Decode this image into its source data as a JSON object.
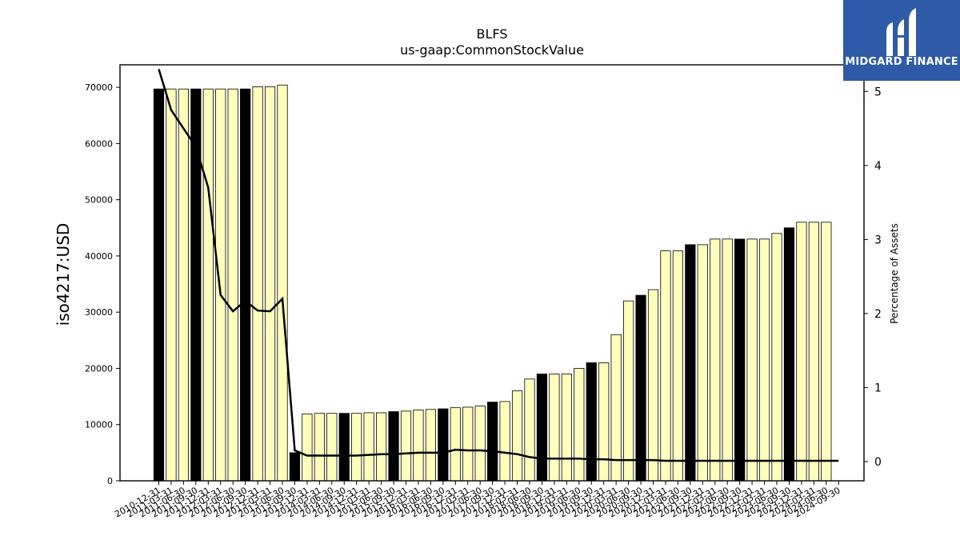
{
  "chart_data": {
    "type": "bar",
    "title": "BLFS",
    "subtitle": "us-gaap:CommonStockValue",
    "ylabel": "iso4217:USD",
    "y2label": "Percentage of Assets",
    "ylim": [
      0,
      74000
    ],
    "y_ticks": [
      0,
      10000,
      20000,
      30000,
      40000,
      50000,
      60000,
      70000
    ],
    "y2lim": [
      -0.26,
      5.36
    ],
    "y2_ticks": [
      0,
      1,
      2,
      3,
      4,
      5
    ],
    "categories": [
      "2010-12-31",
      "2011-03-31",
      "2011-06-30",
      "2011-09-30",
      "2011-12-31",
      "2012-03-31",
      "2012-06-30",
      "2012-09-30",
      "2012-12-31",
      "2013-03-31",
      "2013-06-30",
      "2013-09-30",
      "2013-12-31",
      "2014-03-31",
      "2014-06-30",
      "2014-09-30",
      "2014-12-31",
      "2015-03-31",
      "2015-06-30",
      "2015-09-30",
      "2015-12-31",
      "2016-03-31",
      "2016-06-30",
      "2016-09-30",
      "2016-12-31",
      "2017-03-31",
      "2017-06-30",
      "2017-09-30",
      "2017-12-31",
      "2018-03-31",
      "2018-06-30",
      "2018-09-30",
      "2018-12-31",
      "2019-03-31",
      "2019-06-30",
      "2019-09-30",
      "2019-12-31",
      "2020-03-31",
      "2020-06-30",
      "2020-09-30",
      "2020-12-31",
      "2021-03-31",
      "2021-06-30",
      "2021-09-30",
      "2021-12-31",
      "2022-03-31",
      "2022-06-30",
      "2022-09-30",
      "2022-12-31",
      "2023-03-31",
      "2023-06-30",
      "2023-09-30",
      "2023-12-31",
      "2024-03-31",
      "2024-06-30",
      "2024-09-30"
    ],
    "series": [
      {
        "type": "bar",
        "values": [
          69700,
          69700,
          69700,
          69700,
          69700,
          69700,
          69700,
          69700,
          70100,
          70100,
          70400,
          5000,
          11900,
          12000,
          12000,
          12000,
          12000,
          12100,
          12100,
          12300,
          12400,
          12600,
          12700,
          12800,
          13000,
          13100,
          13300,
          14000,
          14100,
          16000,
          18100,
          19000,
          19000,
          19000,
          20000,
          21000,
          21000,
          26000,
          32000,
          33000,
          34000,
          40900,
          40900,
          42000,
          42000,
          43000,
          43000,
          43000,
          43000,
          43000,
          44000,
          45000,
          46000,
          46000,
          46000,
          null
        ],
        "annual_flags": [
          1,
          0,
          0,
          1,
          0,
          0,
          0,
          1,
          0,
          0,
          0,
          1,
          0,
          0,
          0,
          1,
          0,
          0,
          0,
          1,
          0,
          0,
          0,
          1,
          0,
          0,
          0,
          1,
          0,
          0,
          0,
          1,
          0,
          0,
          0,
          1,
          0,
          0,
          0,
          1,
          0,
          0,
          0,
          1,
          0,
          0,
          0,
          1,
          0,
          0,
          0,
          1,
          0,
          0,
          0,
          0
        ],
        "colors": {
          "annual": "#000000",
          "quarterly": "#ffffbb",
          "edge": "#000000"
        }
      },
      {
        "type": "line",
        "axis": "right",
        "values": [
          5.3,
          4.75,
          4.5,
          4.25,
          3.7,
          2.25,
          2.03,
          2.17,
          2.04,
          2.03,
          2.2,
          0.15,
          0.08,
          0.08,
          0.08,
          0.08,
          0.08,
          0.09,
          0.1,
          0.1,
          0.11,
          0.12,
          0.12,
          0.12,
          0.16,
          0.15,
          0.15,
          0.14,
          0.12,
          0.1,
          0.06,
          0.04,
          0.04,
          0.04,
          0.04,
          0.03,
          0.03,
          0.02,
          0.02,
          0.02,
          0.02,
          0.01,
          0.01,
          0.01,
          0.01,
          0.01,
          0.01,
          0.01,
          0.01,
          0.01,
          0.01,
          0.01,
          0.01,
          0.01,
          0.01,
          0.01
        ],
        "color": "#000000"
      }
    ],
    "grid": false,
    "logo": {
      "text": "MIDGARD FINANCE",
      "bg": "#2f5aa8"
    }
  }
}
